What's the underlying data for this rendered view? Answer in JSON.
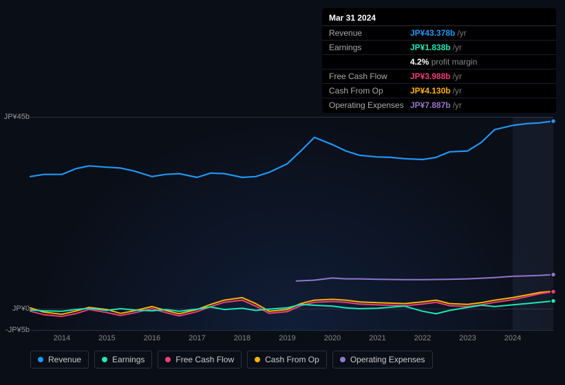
{
  "tooltip": {
    "date": "Mar 31 2024",
    "rows": [
      {
        "label": "Revenue",
        "value": "JP¥43.378b",
        "suffix": "/yr",
        "color": "#2196f3"
      },
      {
        "label": "Earnings",
        "value": "JP¥1.838b",
        "suffix": "/yr",
        "color": "#1de9b6",
        "meta_value": "4.2%",
        "meta_label": "profit margin"
      },
      {
        "label": "Free Cash Flow",
        "value": "JP¥3.988b",
        "suffix": "/yr",
        "color": "#ec407a"
      },
      {
        "label": "Cash From Op",
        "value": "JP¥4.130b",
        "suffix": "/yr",
        "color": "#ffb300"
      },
      {
        "label": "Operating Expenses",
        "value": "JP¥7.887b",
        "suffix": "/yr",
        "color": "#9575cd"
      }
    ]
  },
  "chart": {
    "background_color": "#0a0e17",
    "grid_color": "#2a3240",
    "y_axis": {
      "min": -5,
      "max": 45,
      "ticks": [
        {
          "v": 45,
          "label": "JP¥45b"
        },
        {
          "v": 0,
          "label": "JP¥0"
        },
        {
          "v": -5,
          "label": "-JP¥5b"
        }
      ]
    },
    "x_axis": {
      "min": 2013.3,
      "max": 2024.9,
      "ticks": [
        2014,
        2015,
        2016,
        2017,
        2018,
        2019,
        2020,
        2021,
        2022,
        2023,
        2024
      ],
      "forecast_from": 2024.0
    },
    "series": [
      {
        "name": "Revenue",
        "color": "#2196f3",
        "width": 2.2,
        "data": [
          [
            2013.3,
            31.0
          ],
          [
            2013.6,
            31.5
          ],
          [
            2014.0,
            31.5
          ],
          [
            2014.3,
            32.8
          ],
          [
            2014.6,
            33.5
          ],
          [
            2015.0,
            33.2
          ],
          [
            2015.3,
            33.0
          ],
          [
            2015.6,
            32.3
          ],
          [
            2016.0,
            31.0
          ],
          [
            2016.3,
            31.5
          ],
          [
            2016.6,
            31.7
          ],
          [
            2017.0,
            30.8
          ],
          [
            2017.3,
            31.8
          ],
          [
            2017.6,
            31.7
          ],
          [
            2018.0,
            30.8
          ],
          [
            2018.3,
            31.0
          ],
          [
            2018.6,
            32.0
          ],
          [
            2019.0,
            34.0
          ],
          [
            2019.3,
            37.0
          ],
          [
            2019.6,
            40.2
          ],
          [
            2020.0,
            38.5
          ],
          [
            2020.3,
            37.0
          ],
          [
            2020.6,
            36.0
          ],
          [
            2021.0,
            35.6
          ],
          [
            2021.3,
            35.5
          ],
          [
            2021.6,
            35.2
          ],
          [
            2022.0,
            35.0
          ],
          [
            2022.3,
            35.5
          ],
          [
            2022.6,
            36.8
          ],
          [
            2023.0,
            37.0
          ],
          [
            2023.3,
            39.0
          ],
          [
            2023.6,
            42.0
          ],
          [
            2024.0,
            43.0
          ],
          [
            2024.3,
            43.4
          ],
          [
            2024.6,
            43.6
          ],
          [
            2024.9,
            44.0
          ]
        ]
      },
      {
        "name": "Operating Expenses",
        "color": "#9575cd",
        "width": 2,
        "data": [
          [
            2019.2,
            6.5
          ],
          [
            2019.6,
            6.7
          ],
          [
            2020.0,
            7.2
          ],
          [
            2020.3,
            7.0
          ],
          [
            2020.6,
            7.0
          ],
          [
            2021.0,
            6.9
          ],
          [
            2021.6,
            6.8
          ],
          [
            2022.0,
            6.8
          ],
          [
            2022.6,
            6.9
          ],
          [
            2023.0,
            7.0
          ],
          [
            2023.6,
            7.3
          ],
          [
            2024.0,
            7.6
          ],
          [
            2024.3,
            7.7
          ],
          [
            2024.6,
            7.8
          ],
          [
            2024.9,
            8.0
          ]
        ]
      },
      {
        "name": "Cash From Op",
        "color": "#ffb300",
        "width": 2,
        "data": [
          [
            2013.3,
            0.2
          ],
          [
            2013.6,
            -0.8
          ],
          [
            2014.0,
            -1.3
          ],
          [
            2014.3,
            -0.6
          ],
          [
            2014.6,
            0.3
          ],
          [
            2015.0,
            -0.2
          ],
          [
            2015.3,
            -1.1
          ],
          [
            2015.6,
            -0.5
          ],
          [
            2016.0,
            0.5
          ],
          [
            2016.3,
            -0.4
          ],
          [
            2016.6,
            -1.2
          ],
          [
            2017.0,
            -0.2
          ],
          [
            2017.3,
            1.0
          ],
          [
            2017.6,
            2.0
          ],
          [
            2018.0,
            2.6
          ],
          [
            2018.3,
            1.2
          ],
          [
            2018.6,
            -0.6
          ],
          [
            2019.0,
            -0.2
          ],
          [
            2019.3,
            1.2
          ],
          [
            2019.6,
            2.0
          ],
          [
            2020.0,
            2.2
          ],
          [
            2020.3,
            2.0
          ],
          [
            2020.6,
            1.6
          ],
          [
            2021.0,
            1.4
          ],
          [
            2021.6,
            1.2
          ],
          [
            2022.0,
            1.6
          ],
          [
            2022.3,
            2.0
          ],
          [
            2022.6,
            1.2
          ],
          [
            2023.0,
            1.0
          ],
          [
            2023.3,
            1.4
          ],
          [
            2023.6,
            2.0
          ],
          [
            2024.0,
            2.6
          ],
          [
            2024.3,
            3.2
          ],
          [
            2024.6,
            3.8
          ],
          [
            2024.9,
            4.1
          ]
        ]
      },
      {
        "name": "Free Cash Flow",
        "color": "#ec407a",
        "width": 2,
        "data": [
          [
            2013.3,
            -0.6
          ],
          [
            2013.6,
            -1.4
          ],
          [
            2014.0,
            -1.8
          ],
          [
            2014.3,
            -1.2
          ],
          [
            2014.6,
            -0.2
          ],
          [
            2015.0,
            -0.9
          ],
          [
            2015.3,
            -1.6
          ],
          [
            2015.6,
            -1.0
          ],
          [
            2016.0,
            0.0
          ],
          [
            2016.3,
            -0.9
          ],
          [
            2016.6,
            -1.7
          ],
          [
            2017.0,
            -0.7
          ],
          [
            2017.3,
            0.5
          ],
          [
            2017.6,
            1.5
          ],
          [
            2018.0,
            2.0
          ],
          [
            2018.3,
            0.6
          ],
          [
            2018.6,
            -1.1
          ],
          [
            2019.0,
            -0.7
          ],
          [
            2019.3,
            0.7
          ],
          [
            2019.6,
            1.5
          ],
          [
            2020.0,
            1.7
          ],
          [
            2020.3,
            1.5
          ],
          [
            2020.6,
            1.1
          ],
          [
            2021.0,
            0.9
          ],
          [
            2021.6,
            0.7
          ],
          [
            2022.0,
            1.1
          ],
          [
            2022.3,
            1.5
          ],
          [
            2022.6,
            0.7
          ],
          [
            2023.0,
            0.5
          ],
          [
            2023.3,
            0.9
          ],
          [
            2023.6,
            1.5
          ],
          [
            2024.0,
            2.1
          ],
          [
            2024.3,
            2.8
          ],
          [
            2024.6,
            3.5
          ],
          [
            2024.9,
            4.0
          ]
        ]
      },
      {
        "name": "Earnings",
        "color": "#1de9b6",
        "width": 2,
        "data": [
          [
            2013.3,
            -0.3
          ],
          [
            2013.6,
            -0.5
          ],
          [
            2014.0,
            -0.6
          ],
          [
            2014.3,
            -0.2
          ],
          [
            2014.6,
            0.1
          ],
          [
            2015.0,
            -0.4
          ],
          [
            2015.3,
            0.0
          ],
          [
            2015.6,
            -0.3
          ],
          [
            2016.0,
            -0.5
          ],
          [
            2016.3,
            -0.2
          ],
          [
            2016.6,
            -0.6
          ],
          [
            2017.0,
            -0.1
          ],
          [
            2017.3,
            0.4
          ],
          [
            2017.6,
            -0.2
          ],
          [
            2018.0,
            0.1
          ],
          [
            2018.3,
            -0.4
          ],
          [
            2018.6,
            -0.1
          ],
          [
            2019.0,
            0.2
          ],
          [
            2019.3,
            1.0
          ],
          [
            2019.6,
            0.8
          ],
          [
            2020.0,
            0.6
          ],
          [
            2020.3,
            0.2
          ],
          [
            2020.6,
            0.0
          ],
          [
            2021.0,
            0.1
          ],
          [
            2021.6,
            0.6
          ],
          [
            2022.0,
            -0.6
          ],
          [
            2022.3,
            -1.2
          ],
          [
            2022.6,
            -0.4
          ],
          [
            2023.0,
            0.3
          ],
          [
            2023.3,
            0.8
          ],
          [
            2023.6,
            0.5
          ],
          [
            2024.0,
            0.9
          ],
          [
            2024.3,
            1.2
          ],
          [
            2024.6,
            1.5
          ],
          [
            2024.9,
            1.8
          ]
        ]
      }
    ],
    "legend": [
      {
        "name": "Revenue",
        "color": "#2196f3"
      },
      {
        "name": "Earnings",
        "color": "#1de9b6"
      },
      {
        "name": "Free Cash Flow",
        "color": "#ec407a"
      },
      {
        "name": "Cash From Op",
        "color": "#ffb300"
      },
      {
        "name": "Operating Expenses",
        "color": "#9575cd"
      }
    ]
  }
}
